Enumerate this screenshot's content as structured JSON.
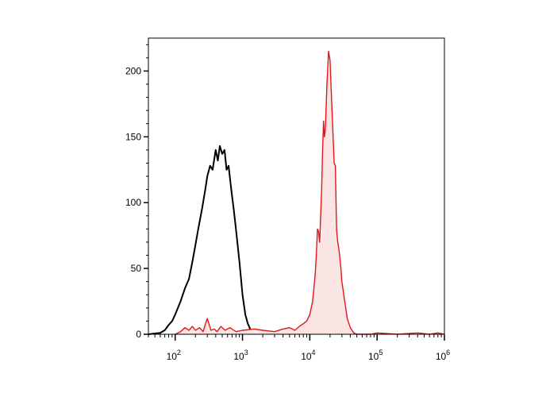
{
  "chart_data": {
    "type": "area",
    "x_scale": "log",
    "xlim": [
      40,
      1000000
    ],
    "ylim": [
      0,
      225
    ],
    "grid": false,
    "title": "",
    "xlabel": "",
    "ylabel": "",
    "x_ticks": [
      {
        "value": 100,
        "base": "10",
        "exp": "2"
      },
      {
        "value": 1000,
        "base": "10",
        "exp": "3"
      },
      {
        "value": 10000,
        "base": "10",
        "exp": "4"
      },
      {
        "value": 100000,
        "base": "10",
        "exp": "5"
      },
      {
        "value": 1000000,
        "base": "10",
        "exp": "6"
      }
    ],
    "y_ticks": [
      0,
      50,
      100,
      150,
      200
    ],
    "series": [
      {
        "color": "#000000",
        "fill": "none",
        "x": [
          40,
          60,
          70,
          80,
          90,
          100,
          120,
          140,
          160,
          180,
          200,
          220,
          250,
          280,
          300,
          330,
          360,
          400,
          430,
          460,
          500,
          540,
          580,
          620,
          680,
          740,
          800,
          900,
          1000,
          1100,
          1200,
          1300,
          1400
        ],
        "y": [
          0,
          1,
          3,
          7,
          10,
          15,
          25,
          35,
          42,
          55,
          68,
          80,
          95,
          110,
          120,
          128,
          125,
          140,
          132,
          143,
          137,
          140,
          125,
          128,
          110,
          95,
          80,
          55,
          30,
          15,
          8,
          4,
          1
        ]
      },
      {
        "color": "#e0181c",
        "fill": "#fbe4e4",
        "x": [
          100,
          120,
          140,
          160,
          180,
          200,
          230,
          260,
          300,
          340,
          380,
          420,
          480,
          550,
          650,
          800,
          1000,
          1500,
          2000,
          3000,
          4000,
          5000,
          6000,
          7000,
          8000,
          9000,
          10000,
          11000,
          12000,
          12500,
          13000,
          13500,
          14000,
          15000,
          15500,
          16000,
          16500,
          17000,
          18000,
          19000,
          20000,
          21000,
          22000,
          23000,
          24000,
          25000,
          26000,
          27000,
          28000,
          29000,
          30000,
          33000,
          36000,
          40000,
          45000,
          50000,
          55000,
          60000,
          80000,
          100000,
          200000,
          400000,
          600000,
          800000,
          1000000
        ],
        "y": [
          0,
          2,
          5,
          3,
          6,
          3,
          5,
          2,
          12,
          3,
          4,
          2,
          6,
          3,
          5,
          2,
          3,
          4,
          3,
          2,
          4,
          5,
          3,
          6,
          8,
          10,
          15,
          25,
          45,
          60,
          80,
          78,
          70,
          110,
          140,
          162,
          150,
          155,
          190,
          215,
          208,
          180,
          155,
          130,
          128,
          80,
          70,
          65,
          58,
          50,
          40,
          25,
          12,
          5,
          1,
          0,
          0,
          0,
          0,
          1,
          0,
          1,
          0,
          1,
          0
        ]
      }
    ]
  }
}
